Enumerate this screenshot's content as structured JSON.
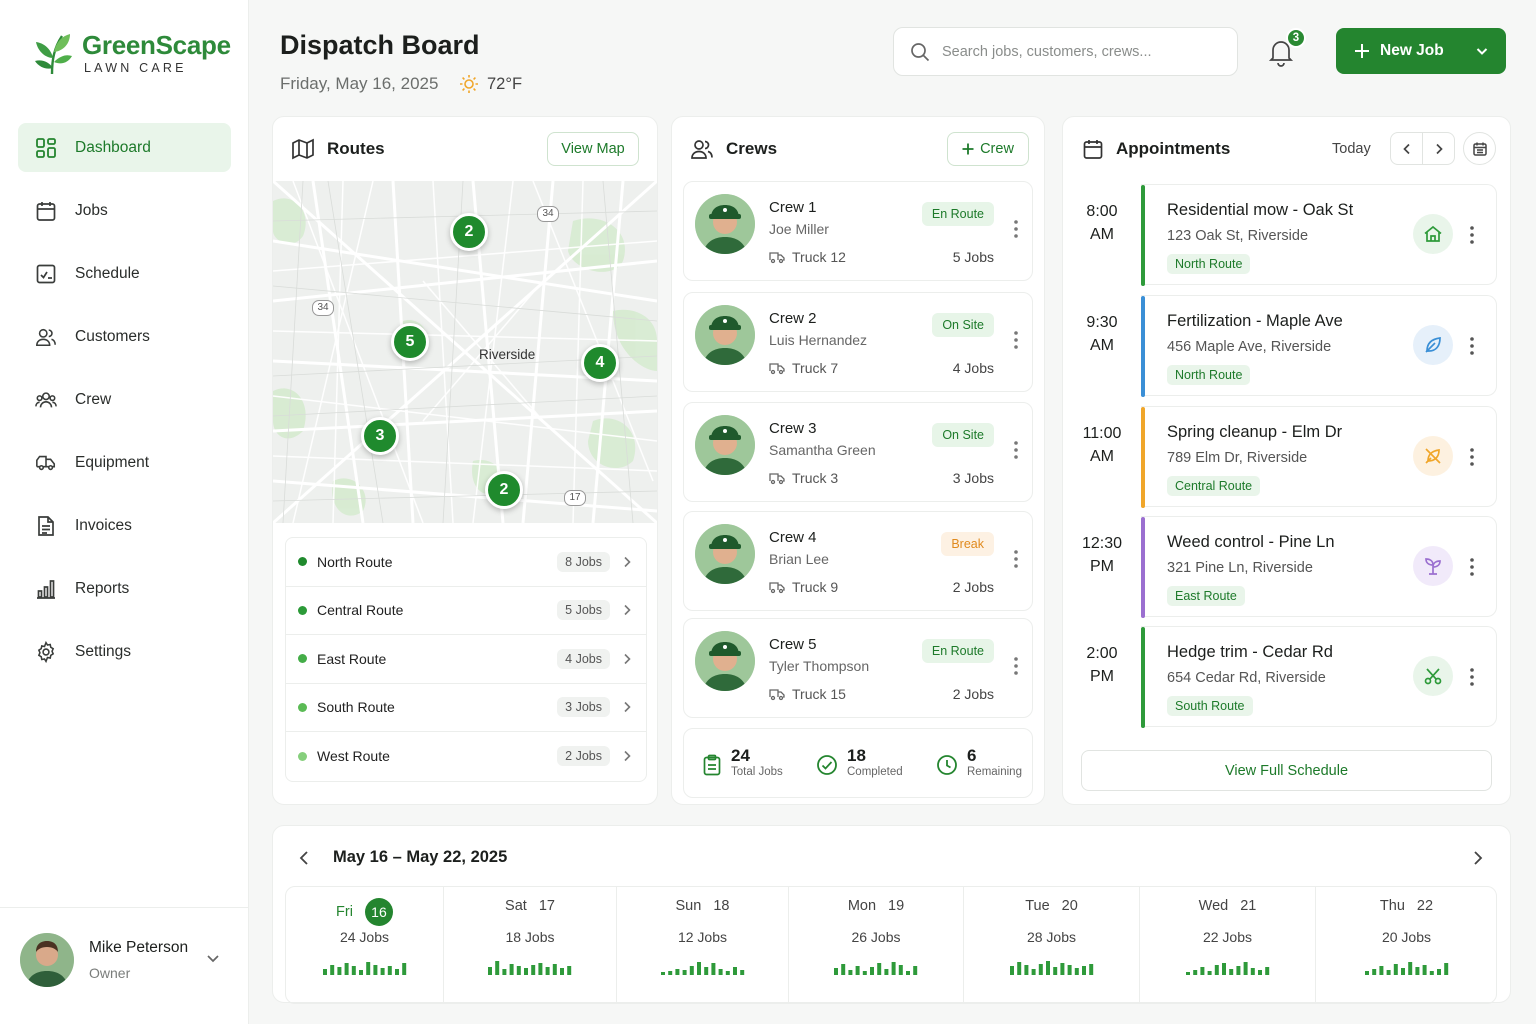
{
  "brand": {
    "name": "GreenScape",
    "tagline": "LAWN CARE"
  },
  "sidebar": {
    "items": [
      {
        "label": "Dashboard",
        "icon": "dashboard-icon",
        "active": true
      },
      {
        "label": "Jobs",
        "icon": "calendar-icon"
      },
      {
        "label": "Schedule",
        "icon": "schedule-icon"
      },
      {
        "label": "Customers",
        "icon": "customers-icon"
      },
      {
        "label": "Crew",
        "icon": "crew-icon"
      },
      {
        "label": "Equipment",
        "icon": "truck-icon"
      },
      {
        "label": "Invoices",
        "icon": "invoice-icon"
      },
      {
        "label": "Reports",
        "icon": "reports-icon"
      },
      {
        "label": "Settings",
        "icon": "gear-icon"
      }
    ]
  },
  "user": {
    "name": "Mike Peterson",
    "role": "Owner"
  },
  "header": {
    "title": "Dispatch Board",
    "date": "Friday, May 16, 2025",
    "temperature": "72°F",
    "search_placeholder": "Search jobs, customers, crews...",
    "notification_count": "3",
    "new_job_label": "New Job"
  },
  "routes": {
    "title": "Routes",
    "view_map_label": "View Map",
    "map": {
      "city_label": "Riverside",
      "highway_labels": [
        "34",
        "34",
        "17"
      ],
      "pins": [
        "2",
        "5",
        "4",
        "3",
        "2"
      ]
    },
    "list": [
      {
        "name": "North Route",
        "jobs": "8 Jobs",
        "color": "#1f8a2d"
      },
      {
        "name": "Central Route",
        "jobs": "5 Jobs",
        "color": "#2c9a38"
      },
      {
        "name": "East Route",
        "jobs": "4 Jobs",
        "color": "#44ad48"
      },
      {
        "name": "South Route",
        "jobs": "3 Jobs",
        "color": "#5bbb55"
      },
      {
        "name": "West Route",
        "jobs": "2 Jobs",
        "color": "#86cf7c"
      }
    ]
  },
  "crews": {
    "title": "Crews",
    "add_label": "Crew",
    "items": [
      {
        "name": "Crew 1",
        "lead": "Joe Miller",
        "truck": "Truck 12",
        "status": "En Route",
        "jobs": "5 Jobs"
      },
      {
        "name": "Crew 2",
        "lead": "Luis Hernandez",
        "truck": "Truck 7",
        "status": "On Site",
        "jobs": "4 Jobs"
      },
      {
        "name": "Crew 3",
        "lead": "Samantha Green",
        "truck": "Truck 3",
        "status": "On Site",
        "jobs": "3 Jobs"
      },
      {
        "name": "Crew 4",
        "lead": "Brian Lee",
        "truck": "Truck 9",
        "status": "Break",
        "jobs": "2 Jobs"
      },
      {
        "name": "Crew 5",
        "lead": "Tyler Thompson",
        "truck": "Truck 15",
        "status": "En Route",
        "jobs": "2 Jobs"
      }
    ],
    "totals": [
      {
        "value": "24",
        "label": "Total Jobs"
      },
      {
        "value": "18",
        "label": "Completed"
      },
      {
        "value": "6",
        "label": "Remaining"
      }
    ]
  },
  "appointments": {
    "title": "Appointments",
    "today_label": "Today",
    "view_full_label": "View Full Schedule",
    "items": [
      {
        "time": "8:00",
        "ampm": "AM",
        "title": "Residential mow - Oak St",
        "address": "123 Oak St, Riverside",
        "route": "North Route",
        "color": "#2e9a3a",
        "icon": "house-icon"
      },
      {
        "time": "9:30",
        "ampm": "AM",
        "title": "Fertilization - Maple Ave",
        "address": "456 Maple Ave, Riverside",
        "route": "North Route",
        "color": "#3a8fd6",
        "icon": "leaf-icon"
      },
      {
        "time": "11:00",
        "ampm": "AM",
        "title": "Spring cleanup - Elm Dr",
        "address": "789 Elm Dr, Riverside",
        "route": "Central Route",
        "color": "#f0a62a",
        "icon": "leaf-cleanup-icon"
      },
      {
        "time": "12:30",
        "ampm": "PM",
        "title": "Weed control - Pine Ln",
        "address": "321 Pine Ln, Riverside",
        "route": "East Route",
        "color": "#9b6fd0",
        "icon": "sprout-icon"
      },
      {
        "time": "2:00",
        "ampm": "PM",
        "title": "Hedge trim - Cedar Rd",
        "address": "654 Cedar Rd, Riverside",
        "route": "South Route",
        "color": "#2e9a3a",
        "icon": "scissors-icon"
      }
    ]
  },
  "week": {
    "range": "May 16 – May 22, 2025",
    "days": [
      {
        "dow": "Fri",
        "num": "16",
        "jobs": "24 Jobs",
        "today": true
      },
      {
        "dow": "Sat",
        "num": "17",
        "jobs": "18 Jobs"
      },
      {
        "dow": "Sun",
        "num": "18",
        "jobs": "12 Jobs"
      },
      {
        "dow": "Mon",
        "num": "19",
        "jobs": "26 Jobs"
      },
      {
        "dow": "Tue",
        "num": "20",
        "jobs": "28 Jobs"
      },
      {
        "dow": "Wed",
        "num": "21",
        "jobs": "22 Jobs"
      },
      {
        "dow": "Thu",
        "num": "22",
        "jobs": "20 Jobs"
      }
    ]
  },
  "colors": {
    "accent": "#24852f",
    "accent_light": "#e9f5ea",
    "break": "#e08a1e"
  }
}
